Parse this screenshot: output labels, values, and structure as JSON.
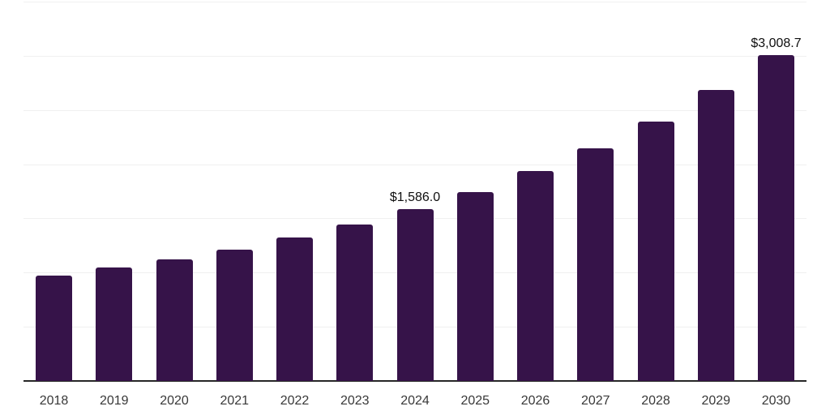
{
  "chart_data": {
    "type": "bar",
    "title": "",
    "xlabel": "",
    "ylabel": "",
    "categories": [
      "2018",
      "2019",
      "2020",
      "2021",
      "2022",
      "2023",
      "2024",
      "2025",
      "2026",
      "2027",
      "2028",
      "2029",
      "2030"
    ],
    "values": [
      975,
      1050,
      1120,
      1215,
      1320,
      1443,
      1586.0,
      1740,
      1936,
      2143,
      2390,
      2682,
      3008.7
    ],
    "ylim": [
      0,
      3500
    ],
    "gridline_interval": 500,
    "grid": "horizontal",
    "legend": "none",
    "y_tick_labels_shown": false,
    "annotations": [
      {
        "category": "2024",
        "text": "$1,586.0"
      },
      {
        "category": "2030",
        "text": "$3,008.7"
      }
    ]
  },
  "colors": {
    "bar": "#361349",
    "gridline": "#f0f0f0",
    "axis_line": "#262626",
    "year_label": "#383838",
    "data_label": "#0f0f0f",
    "background": "#ffffff"
  }
}
